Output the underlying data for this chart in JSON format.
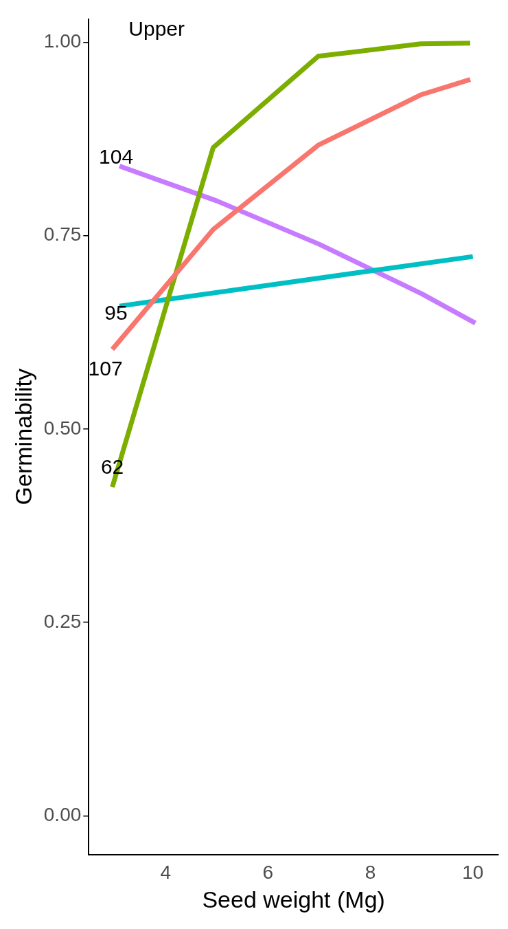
{
  "chart_data": {
    "type": "line",
    "xlabel": "Seed weight (Mg)",
    "ylabel": "Germinability",
    "xlim": [
      2.5,
      10.5
    ],
    "xticks": [
      4,
      6,
      8,
      10
    ],
    "ylim": [
      -0.05,
      1.03
    ],
    "yticks": [
      {
        "value": 0,
        "label": "0.00"
      },
      {
        "value": 0.25,
        "label": "0.25"
      },
      {
        "value": 0.5,
        "label": "0.50"
      },
      {
        "value": 0.75,
        "label": "0.75"
      },
      {
        "value": 1,
        "label": "1.00"
      }
    ],
    "grid": false,
    "legend": false,
    "marker": "none",
    "line_style": "solid",
    "annotations": [
      "Upper"
    ],
    "series": [
      {
        "name": "107",
        "color": "#f8766d",
        "x": [
          2.96,
          4.93,
          6.98,
          8.98,
          9.95
        ],
        "values": [
          0.603,
          0.758,
          0.867,
          0.932,
          0.952
        ]
      },
      {
        "name": "62",
        "color": "#7cae00",
        "x": [
          2.96,
          4.93,
          6.98,
          8.98,
          9.95
        ],
        "values": [
          0.425,
          0.864,
          0.982,
          0.998,
          0.999
        ]
      },
      {
        "name": "95",
        "color": "#00bfc4",
        "x": [
          3.1,
          10
        ],
        "values": [
          0.659,
          0.723
        ]
      },
      {
        "name": "104",
        "color": "#c77cff",
        "x": [
          3.1,
          5,
          7,
          9,
          10.05
        ],
        "values": [
          0.84,
          0.795,
          0.739,
          0.675,
          0.637
        ]
      }
    ]
  }
}
